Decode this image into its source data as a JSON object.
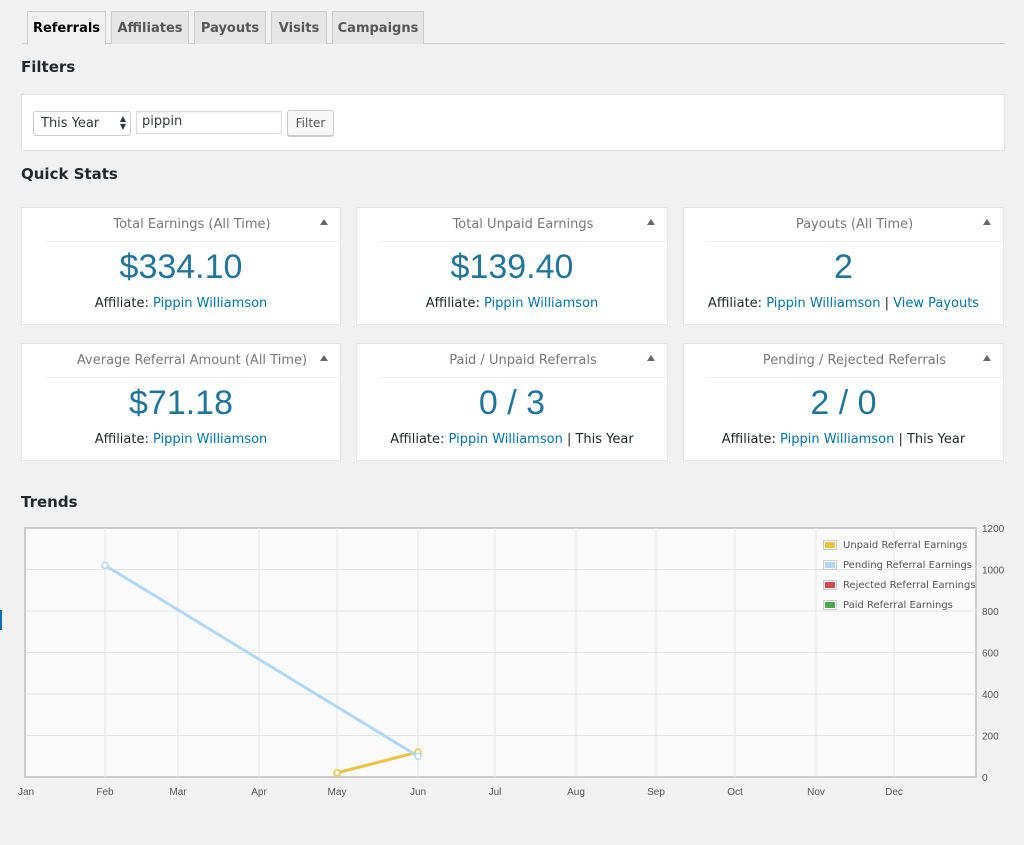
{
  "tabs": [
    {
      "label": "Referrals",
      "active": true
    },
    {
      "label": "Affiliates",
      "active": false
    },
    {
      "label": "Payouts",
      "active": false
    },
    {
      "label": "Visits",
      "active": false
    },
    {
      "label": "Campaigns",
      "active": false
    }
  ],
  "filters": {
    "heading": "Filters",
    "date_range_selected": "This Year",
    "affiliate_value": "pippin",
    "filter_button": "Filter"
  },
  "quick_stats": {
    "heading": "Quick Stats",
    "cards": [
      {
        "title": "Total Earnings (All Time)",
        "value": "$334.10",
        "prefix": "Affiliate: ",
        "link": "Pippin Williamson",
        "sep": "",
        "extra": "",
        "extra_link": ""
      },
      {
        "title": "Total Unpaid Earnings",
        "value": "$139.40",
        "prefix": "Affiliate: ",
        "link": "Pippin Williamson",
        "sep": "",
        "extra": "",
        "extra_link": ""
      },
      {
        "title": "Payouts (All Time)",
        "value": "2",
        "prefix": "Affiliate: ",
        "link": "Pippin Williamson",
        "sep": " | ",
        "extra": "",
        "extra_link": "View Payouts"
      },
      {
        "title": "Average Referral Amount (All Time)",
        "value": "$71.18",
        "prefix": "Affiliate: ",
        "link": "Pippin Williamson",
        "sep": "",
        "extra": "",
        "extra_link": ""
      },
      {
        "title": "Paid / Unpaid Referrals",
        "value": "0 / 3",
        "prefix": "Affiliate: ",
        "link": "Pippin Williamson",
        "sep": " | ",
        "extra": "This Year",
        "extra_link": ""
      },
      {
        "title": "Pending / Rejected Referrals",
        "value": "2 / 0",
        "prefix": "Affiliate: ",
        "link": "Pippin Williamson",
        "sep": " | ",
        "extra": "This Year",
        "extra_link": ""
      }
    ]
  },
  "trends": {
    "heading": "Trends"
  },
  "chart_data": {
    "type": "line",
    "x": [
      "Jan",
      "Feb",
      "Mar",
      "Apr",
      "May",
      "Jun",
      "Jul",
      "Aug",
      "Sep",
      "Oct",
      "Nov",
      "Dec"
    ],
    "ylim": [
      0,
      1200
    ],
    "yticks": [
      0,
      200,
      400,
      600,
      800,
      1000,
      1200
    ],
    "grid": true,
    "legend_position": "top-right",
    "series": [
      {
        "name": "Unpaid Referral Earnings",
        "color": "#edc240",
        "points": [
          {
            "x": "May",
            "y": 20
          },
          {
            "x": "Jun",
            "y": 120
          }
        ]
      },
      {
        "name": "Pending Referral Earnings",
        "color": "#afd8f8",
        "points": [
          {
            "x": "Feb",
            "y": 1020
          },
          {
            "x": "Jun",
            "y": 100
          }
        ]
      },
      {
        "name": "Rejected Referral Earnings",
        "color": "#cb4b4b",
        "points": []
      },
      {
        "name": "Paid Referral Earnings",
        "color": "#4da74d",
        "points": []
      }
    ]
  }
}
